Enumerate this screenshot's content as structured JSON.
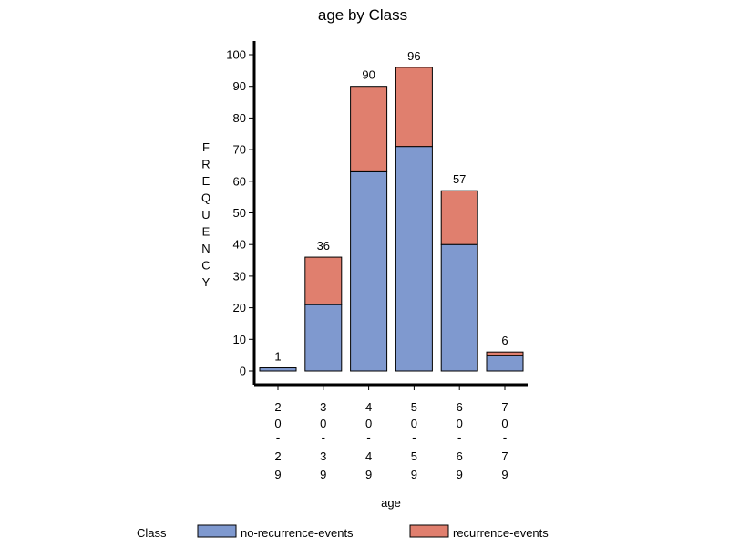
{
  "chart_data": {
    "type": "bar",
    "stacked": true,
    "title": "age by Class",
    "xlabel": "age",
    "ylabel": "FREQUENCY",
    "categories": [
      "20-29",
      "30-39",
      "40-49",
      "50-59",
      "60-69",
      "70-79"
    ],
    "series": [
      {
        "name": "no-recurrence-events",
        "values": [
          1,
          21,
          63,
          71,
          40,
          5
        ],
        "color": "#7f99cf"
      },
      {
        "name": "recurrence-events",
        "values": [
          0,
          15,
          27,
          25,
          17,
          1
        ],
        "color": "#e07f6e"
      }
    ],
    "totals": [
      1,
      36,
      90,
      96,
      57,
      6
    ],
    "ylim": [
      0,
      100
    ],
    "yticks": [
      0,
      10,
      20,
      30,
      40,
      50,
      60,
      70,
      80,
      90,
      100
    ],
    "legend": {
      "title": "Class",
      "position": "bottom"
    },
    "grid": false
  }
}
